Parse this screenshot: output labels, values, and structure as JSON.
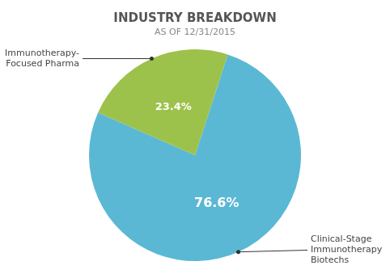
{
  "chart_data": {
    "type": "pie",
    "title": "INDUSTRY BREAKDOWN",
    "subtitle": "AS OF 12/31/2015",
    "categories": [
      "Clinical-Stage\nImmunotherapy\nBiotechs",
      "Immunotherapy-\nFocused Pharma"
    ],
    "values": [
      76.6,
      23.4
    ],
    "value_labels": [
      "76.6%",
      "23.4%"
    ],
    "colors": [
      "#5bb8d4",
      "#9dc24b"
    ],
    "data_labels": true
  }
}
